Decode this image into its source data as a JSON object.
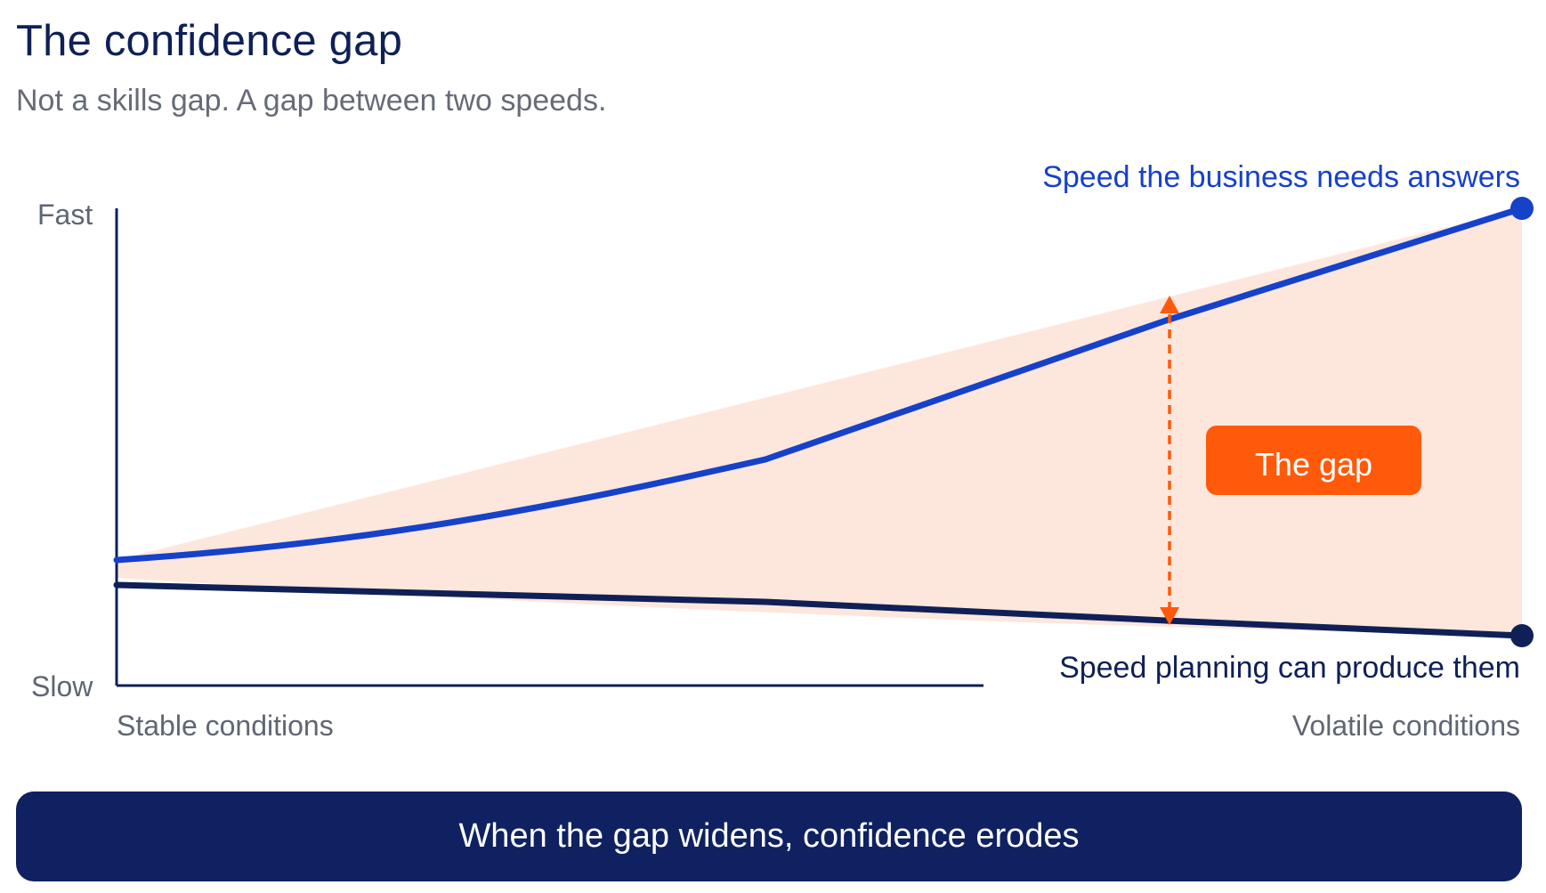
{
  "header": {
    "title": "The confidence gap",
    "subtitle": "Not a skills gap. A gap between two speeds."
  },
  "axes": {
    "y_top_label": "Fast",
    "y_bottom_label": "Slow",
    "x_left_label": "Stable conditions",
    "x_right_label": "Volatile conditions"
  },
  "series": {
    "business_label": "Speed the business needs answers",
    "planning_label": "Speed planning can produce them"
  },
  "gap_label": "The gap",
  "banner": {
    "text": "When the gap widens, confidence erodes"
  },
  "colors": {
    "navy": "#0f2057",
    "blue": "#1641c9",
    "orange": "#ff5a0a",
    "gap_fill": "#fde6dc",
    "muted_text": "#666b78"
  }
}
